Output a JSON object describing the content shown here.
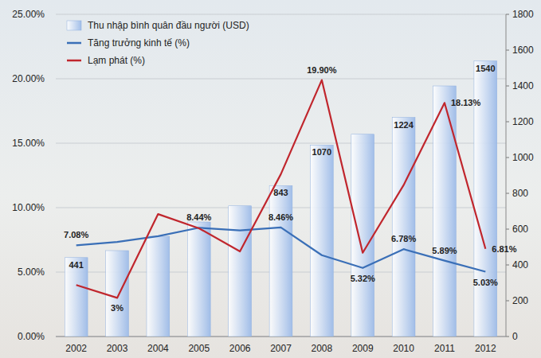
{
  "chart_data": {
    "type": "bar",
    "categories": [
      "2002",
      "2003",
      "2004",
      "2005",
      "2006",
      "2007",
      "2008",
      "2009",
      "2010",
      "2011",
      "2012"
    ],
    "series": [
      {
        "name": "Thu nhập bình quân đầu người (USD)",
        "type": "bar",
        "axis": "y2",
        "color": "#9dbbe8",
        "values": [
          441,
          480,
          560,
          640,
          730,
          843,
          1070,
          1130,
          1224,
          1400,
          1540
        ],
        "value_labels": [
          "441",
          null,
          null,
          null,
          null,
          "843",
          "1070",
          null,
          "1224",
          null,
          "1540"
        ]
      },
      {
        "name": "Tăng trưởng kinh tế (%)",
        "type": "line",
        "color": "#3a6fb7",
        "values": [
          7.08,
          7.34,
          7.79,
          8.44,
          8.23,
          8.46,
          6.31,
          5.32,
          6.78,
          5.89,
          5.03
        ],
        "value_labels": [
          "7.08%",
          null,
          null,
          "8.44%",
          null,
          "8.46%",
          null,
          "5.32%",
          "6.78%",
          "5.89%",
          "5.03%"
        ]
      },
      {
        "name": "Lạm phát (%)",
        "type": "line",
        "color": "#c0262d",
        "values": [
          4.0,
          3,
          9.5,
          8.4,
          6.6,
          12.6,
          19.9,
          6.5,
          11.75,
          18.13,
          6.81
        ],
        "value_labels": [
          null,
          "3%",
          null,
          null,
          null,
          null,
          "19.90%",
          null,
          null,
          "18.13%",
          "6.81%"
        ]
      }
    ],
    "ylim": [
      0,
      25
    ],
    "yticks": [
      {
        "value": 0,
        "label": "0.00%"
      },
      {
        "value": 5,
        "label": "5.00%"
      },
      {
        "value": 10,
        "label": "10.00%"
      },
      {
        "value": 15,
        "label": "15.00%"
      },
      {
        "value": 20,
        "label": "20.00%"
      },
      {
        "value": 25,
        "label": "25.00%"
      }
    ],
    "y2lim": [
      0,
      1800
    ],
    "y2ticks": [
      0,
      200,
      400,
      600,
      800,
      1000,
      1200,
      1400,
      1600,
      1800
    ],
    "grid": true,
    "legend": "upper left",
    "data_labels": true
  }
}
